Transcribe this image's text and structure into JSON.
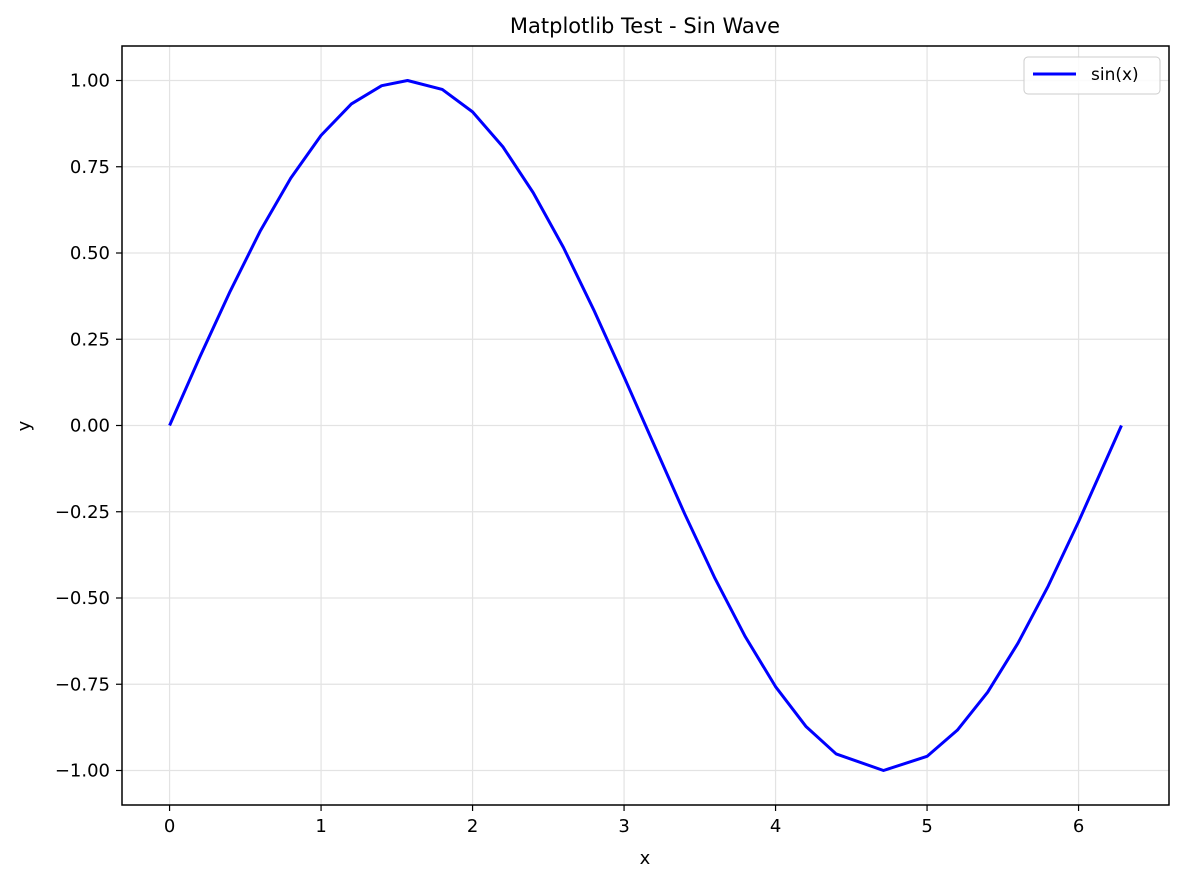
{
  "chart_data": {
    "type": "line",
    "title": "Matplotlib Test - Sin Wave",
    "xlabel": "x",
    "ylabel": "y",
    "xlim": [
      -0.314,
      6.597
    ],
    "ylim": [
      -1.1,
      1.1
    ],
    "xticks": [
      0,
      1,
      2,
      3,
      4,
      5,
      6
    ],
    "xtick_labels": [
      "0",
      "1",
      "2",
      "3",
      "4",
      "5",
      "6"
    ],
    "yticks": [
      1.0,
      0.75,
      0.5,
      0.25,
      0.0,
      -0.25,
      -0.5,
      -0.75,
      -1.0
    ],
    "ytick_labels": [
      "1.00",
      "0.75",
      "0.50",
      "0.25",
      "0.00",
      "−0.25",
      "−0.50",
      "−0.75",
      "−1.00"
    ],
    "grid": true,
    "legend_position": "top-right",
    "series": [
      {
        "name": "sin(x)",
        "color": "#0000ff",
        "x": [
          0.0,
          0.2,
          0.4,
          0.6,
          0.8,
          1.0,
          1.2,
          1.4,
          1.5708,
          1.8,
          2.0,
          2.2,
          2.4,
          2.6,
          2.8,
          3.0,
          3.1416,
          3.4,
          3.6,
          3.8,
          4.0,
          4.2,
          4.4,
          4.7124,
          5.0,
          5.2,
          5.4,
          5.6,
          5.8,
          6.0,
          6.2832
        ],
        "y": [
          0.0,
          0.199,
          0.389,
          0.565,
          0.717,
          0.841,
          0.932,
          0.985,
          1.0,
          0.974,
          0.909,
          0.808,
          0.675,
          0.516,
          0.335,
          0.141,
          0.0,
          -0.256,
          -0.443,
          -0.612,
          -0.757,
          -0.872,
          -0.952,
          -1.0,
          -0.959,
          -0.883,
          -0.773,
          -0.631,
          -0.465,
          -0.279,
          0.0
        ]
      }
    ]
  }
}
